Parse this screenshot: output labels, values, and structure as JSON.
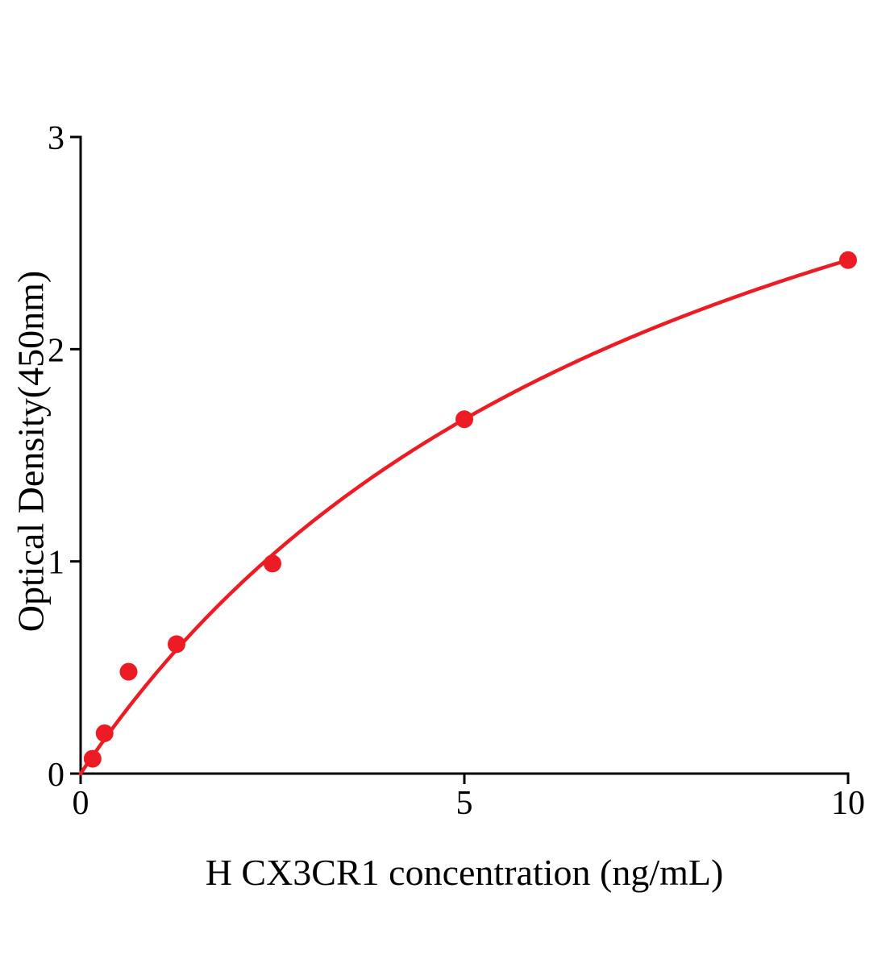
{
  "chart_data": {
    "type": "scatter",
    "title": "",
    "xlabel": "H CX3CR1 concentration (ng/mL)",
    "ylabel": "Optical Density(450nm)",
    "x": [
      0.156,
      0.3125,
      0.625,
      1.25,
      2.5,
      5,
      10
    ],
    "y": [
      0.07,
      0.19,
      0.48,
      0.61,
      0.99,
      1.67,
      2.42
    ],
    "xlim": [
      0,
      10
    ],
    "ylim": [
      0,
      3
    ],
    "x_ticks": [
      0,
      5,
      10
    ],
    "x_tick_labels": [
      "0",
      "5",
      "10"
    ],
    "y_ticks": [
      0,
      1,
      2,
      3
    ],
    "y_tick_labels": [
      "0",
      "1",
      "2",
      "3"
    ],
    "curve": {
      "type": "saturation-fit",
      "through_origin": true
    },
    "grid": false,
    "legend": "none",
    "colors": {
      "points": "#ed1c24",
      "line": "#ed1c24",
      "axis": "#000000",
      "background": "#ffffff"
    }
  }
}
